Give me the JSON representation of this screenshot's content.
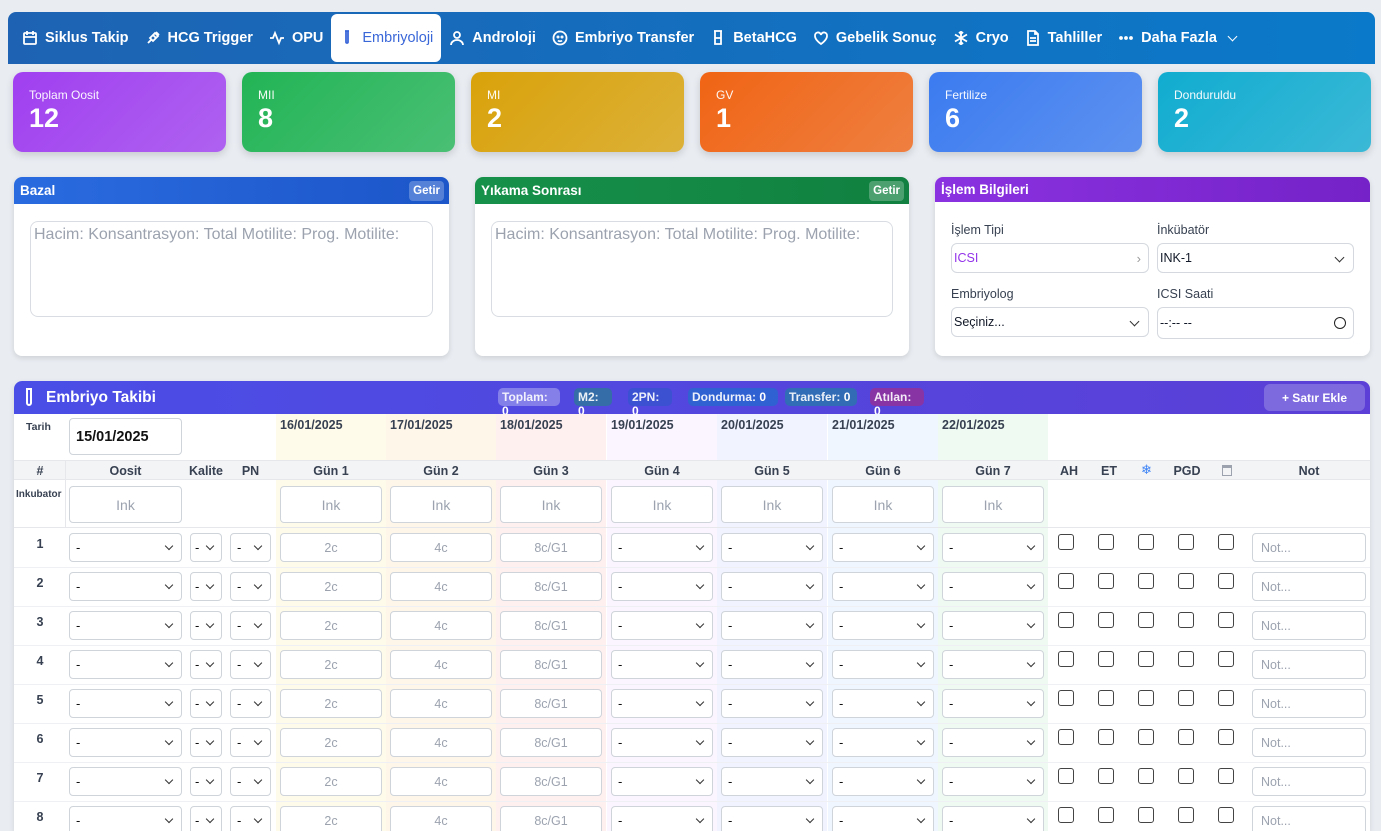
{
  "nav": {
    "tabs": [
      {
        "label": "Siklus Takip",
        "icon": "calendar-icon"
      },
      {
        "label": "HCG Trigger",
        "icon": "syringe-icon"
      },
      {
        "label": "OPU",
        "icon": "activity-icon"
      },
      {
        "label": "Embriyoloji",
        "icon": "test-tube-icon",
        "active": true
      },
      {
        "label": "Androloji",
        "icon": "user-icon"
      },
      {
        "label": "Embriyo Transfer",
        "icon": "baby-icon"
      },
      {
        "label": "BetaHCG",
        "icon": "beaker-icon"
      },
      {
        "label": "Gebelik Sonuç",
        "icon": "heart-icon"
      },
      {
        "label": "Cryo",
        "icon": "snowflake-icon"
      },
      {
        "label": "Tahliller",
        "icon": "file-icon"
      },
      {
        "label": "Daha Fazla",
        "icon": "more-icon"
      }
    ]
  },
  "stats": [
    {
      "label": "Toplam Oosit",
      "value": "12",
      "color": "#a03ff0"
    },
    {
      "label": "MII",
      "value": "8",
      "color": "#22b455"
    },
    {
      "label": "MI",
      "value": "2",
      "color": "#d9a20a"
    },
    {
      "label": "GV",
      "value": "1",
      "color": "#f06414"
    },
    {
      "label": "Fertilize",
      "value": "6",
      "color": "#3b7bf0"
    },
    {
      "label": "Donduruldu",
      "value": "2",
      "color": "#10acd0"
    }
  ],
  "bazal": {
    "title": "Bazal",
    "button": "Getir",
    "placeholder": "Hacim: Konsantrasyon: Total Motilite: Prog. Motilite:"
  },
  "yikama": {
    "title": "Yıkama Sonrası",
    "button": "Getir",
    "placeholder": "Hacim: Konsantrasyon: Total Motilite: Prog. Motilite:"
  },
  "islem": {
    "title": "İşlem Bilgileri",
    "tip_label": "İşlem Tipi",
    "tip_value": "ICSI",
    "inkubator_label": "İnkübatör",
    "inkubator_value": "INK-1",
    "embriyolog_label": "Embriyolog",
    "embriyolog_value": "Seçiniz...",
    "saat_label": "ICSI Saati",
    "saat_value": "--:-- --"
  },
  "grid": {
    "title": "Embriyo Takibi",
    "pills": [
      {
        "label": "Toplam:",
        "value": "0"
      },
      {
        "label": "M2:",
        "value": "0"
      },
      {
        "label": "2PN:",
        "value": "0"
      },
      {
        "label": "Dondurma:",
        "value": "0"
      },
      {
        "label": "Transfer:",
        "value": "0"
      },
      {
        "label": "Atılan:",
        "value": "0"
      }
    ],
    "add_button": "+ Satır Ekle",
    "tarih_label": "Tarih",
    "tarih_value": "15/01/2025",
    "dates": [
      "16/01/2025",
      "17/01/2025",
      "18/01/2025",
      "19/01/2025",
      "20/01/2025",
      "21/01/2025",
      "22/01/2025"
    ],
    "columns": [
      "#",
      "Oosit",
      "Kalite",
      "PN",
      "Gün 1",
      "Gün 2",
      "Gün 3",
      "Gün 4",
      "Gün 5",
      "Gün 6",
      "Gün 7",
      "AH",
      "ET",
      "PGD",
      "Not"
    ],
    "inkubator_label": "Inkubator",
    "ink_placeholder": "Ink",
    "day_placeholders": [
      "2c",
      "4c",
      "8c/G1"
    ],
    "select_value": "-",
    "small_select_value": "-",
    "note_placeholder": "Not...",
    "rows": [
      "1",
      "2",
      "3",
      "4",
      "5",
      "6",
      "7",
      "8"
    ]
  }
}
